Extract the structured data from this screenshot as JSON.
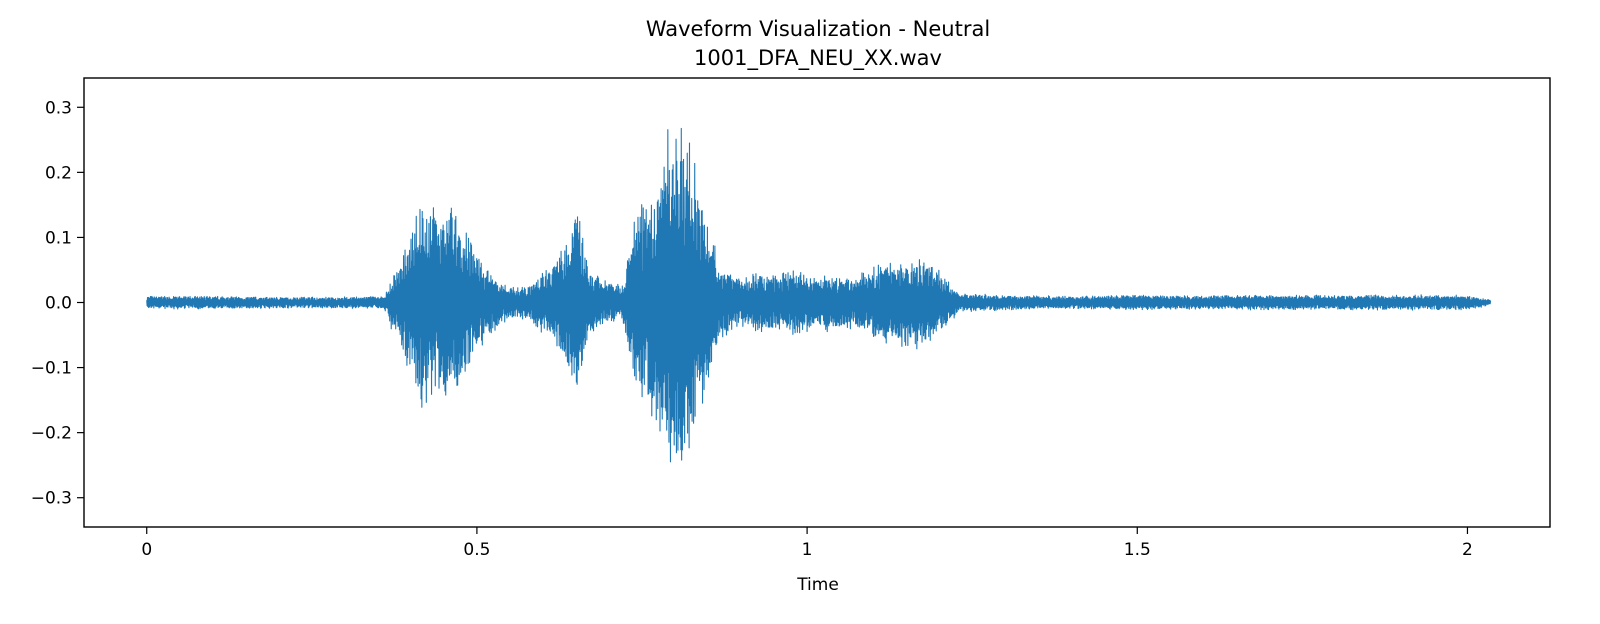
{
  "chart_data": {
    "type": "line",
    "title": "Waveform Visualization - Neutral",
    "subtitle": "1001_DFA_NEU_XX.wav",
    "xlabel": "Time",
    "ylabel": "",
    "xlim": [
      -0.095,
      2.125
    ],
    "ylim": [
      -0.345,
      0.345
    ],
    "xticks": [
      0,
      0.5,
      1,
      1.5,
      2
    ],
    "xtick_labels": [
      "0",
      "0.5",
      "1",
      "1.5",
      "2"
    ],
    "yticks": [
      0.3,
      0.2,
      0.1,
      0.0,
      -0.1,
      -0.2,
      -0.3
    ],
    "ytick_labels": [
      "0.3",
      "0.2",
      "0.1",
      "0.0",
      "−0.1",
      "−0.2",
      "−0.3"
    ],
    "grid": false,
    "legend": "none",
    "duration": 2.035,
    "series": [
      {
        "color": "#1f77b4",
        "envelope": {
          "t": [
            0.0,
            0.1,
            0.2,
            0.3,
            0.36,
            0.37,
            0.39,
            0.41,
            0.44,
            0.46,
            0.49,
            0.52,
            0.55,
            0.58,
            0.61,
            0.63,
            0.65,
            0.67,
            0.69,
            0.72,
            0.74,
            0.77,
            0.79,
            0.8,
            0.81,
            0.83,
            0.85,
            0.87,
            0.9,
            0.93,
            0.96,
            0.99,
            1.01,
            1.04,
            1.07,
            1.1,
            1.13,
            1.16,
            1.19,
            1.21,
            1.23,
            1.3,
            1.4,
            1.5,
            1.6,
            1.7,
            1.8,
            1.9,
            2.0,
            2.035
          ],
          "amp": [
            0.01,
            0.01,
            0.009,
            0.009,
            0.01,
            0.04,
            0.08,
            0.17,
            0.15,
            0.16,
            0.1,
            0.05,
            0.025,
            0.03,
            0.06,
            0.1,
            0.16,
            0.05,
            0.04,
            0.03,
            0.14,
            0.19,
            0.28,
            0.31,
            0.3,
            0.22,
            0.13,
            0.06,
            0.04,
            0.05,
            0.045,
            0.055,
            0.04,
            0.05,
            0.04,
            0.06,
            0.07,
            0.08,
            0.06,
            0.04,
            0.015,
            0.012,
            0.01,
            0.012,
            0.011,
            0.012,
            0.012,
            0.012,
            0.012,
            0.004
          ]
        }
      }
    ]
  }
}
